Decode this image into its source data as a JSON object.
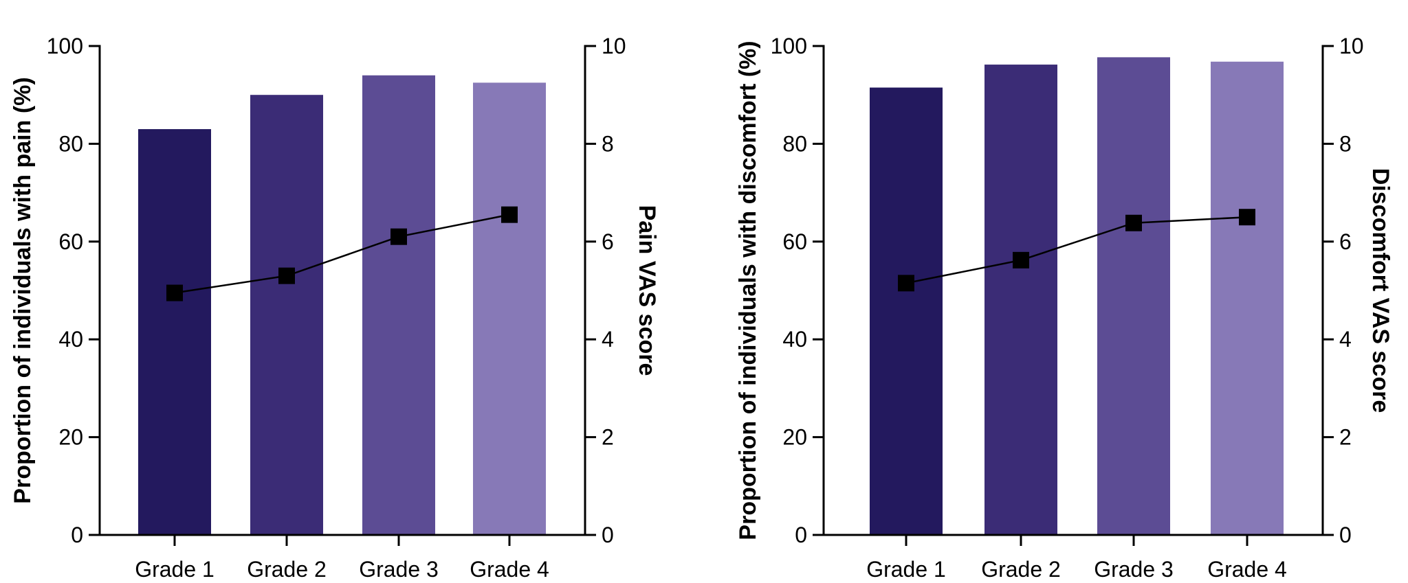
{
  "chart_data": [
    {
      "type": "bar",
      "categories": [
        "Grade 1",
        "Grade 2",
        "Grade 3",
        "Grade 4"
      ],
      "series": [
        {
          "name": "Proportion of individuals with pain (%)",
          "axis": "left",
          "values": [
            83,
            90,
            94,
            92.5
          ]
        },
        {
          "name": "Pain VAS score",
          "axis": "right",
          "type": "line",
          "values": [
            4.95,
            5.3,
            6.1,
            6.55
          ]
        }
      ],
      "bar_colors": [
        "#23195e",
        "#3b2c76",
        "#5c4c94",
        "#8779b7"
      ],
      "marker_color": "#000000",
      "ylabel": "Proportion of individuals with pain (%)",
      "ylim": [
        0,
        100
      ],
      "yticks": [
        "0",
        "20",
        "40",
        "60",
        "80",
        "100"
      ],
      "y2label": "Pain VAS score",
      "y2lim": [
        0,
        10
      ],
      "y2ticks": [
        "0",
        "2",
        "4",
        "6",
        "8",
        "10"
      ],
      "grid": false
    },
    {
      "type": "bar",
      "categories": [
        "Grade 1",
        "Grade 2",
        "Grade 3",
        "Grade 4"
      ],
      "series": [
        {
          "name": "Proportion of individuals with discomfort (%)",
          "axis": "left",
          "values": [
            91.5,
            96.2,
            97.7,
            96.8
          ]
        },
        {
          "name": "Discomfort VAS score",
          "axis": "right",
          "type": "line",
          "values": [
            5.15,
            5.62,
            6.38,
            6.5
          ]
        }
      ],
      "bar_colors": [
        "#23195e",
        "#3b2c76",
        "#5c4c94",
        "#8779b7"
      ],
      "marker_color": "#000000",
      "ylabel": "Proportion of individuals with discomfort (%)",
      "ylim": [
        0,
        100
      ],
      "yticks": [
        "0",
        "20",
        "40",
        "60",
        "80",
        "100"
      ],
      "y2label": "Discomfort VAS score",
      "y2lim": [
        0,
        10
      ],
      "y2ticks": [
        "0",
        "2",
        "4",
        "6",
        "8",
        "10"
      ],
      "grid": false
    }
  ]
}
